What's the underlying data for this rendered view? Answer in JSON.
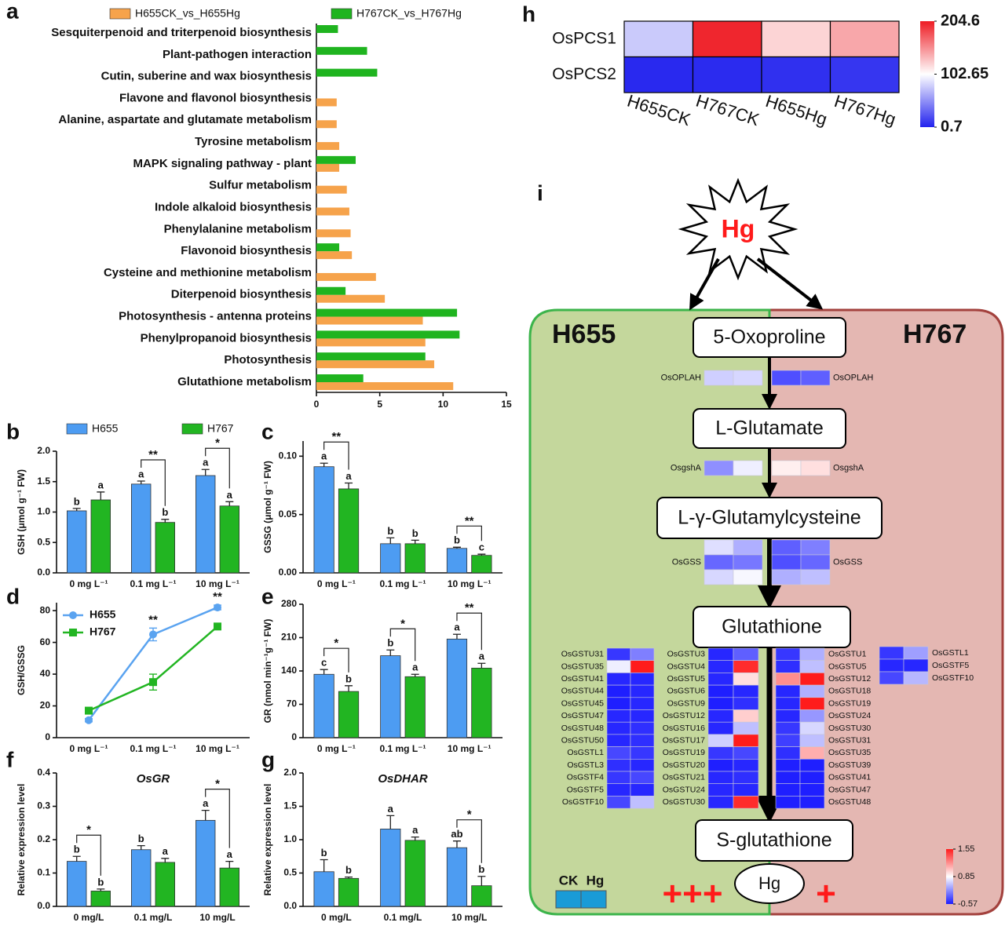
{
  "chart_data": [
    {
      "type": "bar",
      "orientation": "horizontal",
      "label": "a",
      "categories": [
        "Sesquiterpenoid and triterpenoid biosynthesis",
        "Plant-pathogen interaction",
        "Cutin, suberine and wax biosynthesis",
        "Flavone and flavonol biosynthesis",
        "Alanine, aspartate and glutamate metabolism",
        "Tyrosine metabolism",
        "MAPK signaling pathway - plant",
        "Sulfur metabolism",
        "Indole alkaloid biosynthesis",
        "Phenylalanine metabolism",
        "Flavonoid biosynthesis",
        "Cysteine and methionine metabolism",
        "Diterpenoid biosynthesis",
        "Photosynthesis - antenna proteins",
        "Phenylpropanoid biosynthesis",
        "Photosynthesis",
        "Glutathione metabolism"
      ],
      "series": [
        {
          "name": "H655CK_vs_H655Hg",
          "color": "#f6a34b",
          "values": [
            null,
            null,
            null,
            1.6,
            1.6,
            1.8,
            1.8,
            2.4,
            2.6,
            2.7,
            2.8,
            4.7,
            5.4,
            8.4,
            8.6,
            9.3,
            10.8
          ]
        },
        {
          "name": "H767CK_vs_H767Hg",
          "color": "#1fb41f",
          "values": [
            1.7,
            4.0,
            4.8,
            null,
            null,
            null,
            3.1,
            null,
            null,
            null,
            1.8,
            null,
            2.3,
            11.1,
            11.3,
            8.6,
            3.7
          ]
        }
      ],
      "xlim": [
        0,
        15
      ],
      "xticks": [
        0,
        5,
        10,
        15
      ],
      "legend": "top"
    },
    {
      "type": "heatmap",
      "label": "h",
      "rows": [
        "OsPCS1",
        "OsPCS2"
      ],
      "columns": [
        "H655CK",
        "H767CK",
        "H655Hg",
        "H767Hg"
      ],
      "values": [
        [
          78,
          200,
          122,
          142
        ],
        [
          4,
          5,
          7,
          10
        ]
      ],
      "zlim": [
        0.7,
        204.6
      ],
      "zticks": [
        204.6,
        102.65,
        0.7
      ],
      "colors": [
        "#2222ee",
        "#ffffff",
        "#ee1c24"
      ]
    },
    {
      "type": "bar",
      "label": "b",
      "ylabel": "GSH (μmol g⁻¹ FW)",
      "categories": [
        "0  mg L⁻¹",
        "0.1  mg L⁻¹",
        "10  mg L⁻¹"
      ],
      "series": [
        {
          "name": "H655",
          "color": "#4d9cf2",
          "values": [
            1.02,
            1.46,
            1.6
          ],
          "errors": [
            0.04,
            0.05,
            0.1
          ],
          "letters": [
            "b",
            "a",
            "a"
          ]
        },
        {
          "name": "H767",
          "color": "#22b522",
          "values": [
            1.2,
            0.83,
            1.1
          ],
          "errors": [
            0.13,
            0.05,
            0.07
          ],
          "letters": [
            "a",
            "b",
            "a"
          ]
        }
      ],
      "significance": [
        null,
        "**",
        "*"
      ],
      "ylim": [
        0,
        2.0
      ],
      "yticks": [
        {
          "value": 0,
          "label": "0.0"
        },
        0.5,
        {
          "value": 1,
          "label": "1.0"
        },
        1.5,
        {
          "value": 2,
          "label": "2.0"
        }
      ],
      "legend": "top"
    },
    {
      "type": "bar",
      "label": "c",
      "ylabel": "GSSG (μmol g⁻¹ FW)",
      "categories": [
        "0  mg L⁻¹",
        "0.1  mg L⁻¹",
        "10  mg L⁻¹"
      ],
      "series": [
        {
          "color": "#4d9cf2",
          "values": [
            0.091,
            0.025,
            0.021
          ],
          "errors": [
            0.003,
            0.005,
            0.001
          ],
          "letters": [
            "a",
            "b",
            "b"
          ]
        },
        {
          "color": "#22b522",
          "values": [
            0.072,
            0.025,
            0.015
          ],
          "errors": [
            0.005,
            0.003,
            0.001
          ],
          "letters": [
            "a",
            "b",
            "c"
          ]
        }
      ],
      "significance": [
        "**",
        null,
        "**"
      ],
      "ylim": [
        0,
        0.113
      ],
      "yticks": [
        {
          "value": 0,
          "label": "0.00"
        },
        0.05,
        {
          "value": 0.1,
          "label": "0.10"
        }
      ]
    },
    {
      "type": "line",
      "label": "d",
      "ylabel": "GSH/GSSG",
      "categories": [
        "0 mg L⁻¹",
        "0.1 mg L⁻¹",
        "10 mg L⁻¹"
      ],
      "series": [
        {
          "name": "H655",
          "color": "#5aa3f0",
          "marker": "circle",
          "values": [
            11,
            65,
            82
          ],
          "errors": [
            1,
            4,
            1.5
          ]
        },
        {
          "name": "H767",
          "color": "#22b522",
          "marker": "square",
          "values": [
            17,
            35,
            70
          ],
          "errors": [
            2,
            5,
            1
          ]
        }
      ],
      "significance": [
        null,
        "**",
        "**"
      ],
      "ylim": [
        0,
        85
      ],
      "yticks": [
        0,
        20,
        40,
        60,
        80
      ],
      "legend": "upper left"
    },
    {
      "type": "bar",
      "label": "e",
      "ylabel": "GR (nmol min⁻¹g⁻¹ FW)",
      "categories": [
        "0  mg L⁻¹",
        "0.1  mg L⁻¹",
        "10  mg L⁻¹"
      ],
      "series": [
        {
          "color": "#4d9cf2",
          "values": [
            133,
            172,
            207
          ],
          "errors": [
            10,
            12,
            10
          ],
          "letters": [
            "c",
            "b",
            "a"
          ]
        },
        {
          "color": "#22b522",
          "values": [
            97,
            128,
            146
          ],
          "errors": [
            12,
            5,
            10
          ],
          "letters": [
            "b",
            "a",
            "a"
          ]
        }
      ],
      "significance": [
        "*",
        "*",
        "**"
      ],
      "ylim": [
        0,
        280
      ],
      "yticks": [
        0,
        70,
        140,
        210,
        280
      ]
    },
    {
      "type": "bar",
      "label": "f",
      "title": "OsGR",
      "ylabel": "Relative expression level",
      "categories": [
        "0 mg/L",
        "0.1 mg/L",
        "10 mg/L"
      ],
      "series": [
        {
          "color": "#4d9cf2",
          "values": [
            0.135,
            0.17,
            0.258
          ],
          "errors": [
            0.015,
            0.012,
            0.03
          ],
          "letters": [
            "b",
            "b",
            "a"
          ]
        },
        {
          "color": "#22b522",
          "values": [
            0.046,
            0.132,
            0.115
          ],
          "errors": [
            0.006,
            0.012,
            0.02
          ],
          "letters": [
            "b",
            "a",
            "a"
          ]
        }
      ],
      "significance": [
        "*",
        null,
        "*"
      ],
      "ylim": [
        0,
        0.4
      ],
      "yticks": [
        {
          "value": 0,
          "label": "0.0"
        },
        0.1,
        0.2,
        0.3,
        0.4
      ]
    },
    {
      "type": "bar",
      "label": "g",
      "title": "OsDHAR",
      "ylabel": "Relative expression level",
      "categories": [
        "0 mg/L",
        "0.1 mg/L",
        "10 mg/L"
      ],
      "series": [
        {
          "color": "#4d9cf2",
          "values": [
            0.52,
            1.16,
            0.88
          ],
          "errors": [
            0.18,
            0.2,
            0.1
          ],
          "letters": [
            "b",
            "a",
            "ab"
          ]
        },
        {
          "color": "#22b522",
          "values": [
            0.42,
            0.99,
            0.31
          ],
          "errors": [
            0.02,
            0.05,
            0.14
          ],
          "letters": [
            "b",
            "a",
            "b"
          ]
        }
      ],
      "significance": [
        null,
        null,
        "*"
      ],
      "ylim": [
        0,
        2.0
      ],
      "yticks": [
        {
          "value": 0,
          "label": "0.0"
        },
        0.5,
        {
          "value": 1,
          "label": "1.0"
        },
        1.5,
        {
          "value": 2,
          "label": "2.0"
        }
      ]
    }
  ],
  "diagram": {
    "label": "i",
    "stressor": "Hg",
    "left_title": "H655",
    "right_title": "H767",
    "nodes": [
      "5-Oxoproline",
      "L-Glutamate",
      "L-γ-Glutamylcysteine",
      "Glutathione",
      "S-glutathione"
    ],
    "metal": "Hg",
    "enzymes": [
      {
        "name": "OsOPLAH",
        "left": [
          [
            0.55,
            0.6
          ]
        ],
        "right": [
          [
            -0.25,
            -0.15
          ]
        ]
      },
      {
        "name": "OsgshA",
        "left": [
          [
            0.15,
            0.75
          ]
        ],
        "right": [
          [
            0.9,
            0.95
          ]
        ]
      },
      {
        "name": "OsGSS",
        "left": [
          [
            0.65,
            0.35
          ],
          [
            -0.1,
            0.0
          ],
          [
            0.6,
            0.8
          ]
        ],
        "right": [
          [
            -0.15,
            0.05
          ],
          [
            -0.25,
            -0.1
          ],
          [
            0.35,
            0.45
          ]
        ]
      }
    ],
    "gst_blocks": [
      {
        "genes": [
          "OsGSTU31",
          "OsGSTU35",
          "OsGSTU41",
          "OsGSTU44",
          "OsGSTU45",
          "OsGSTU47",
          "OsGSTU48",
          "OsGSTU50",
          "OsGSTL1",
          "OsGSTL3",
          "OsGSTF4",
          "OsGSTF5",
          "OsGSTF10"
        ],
        "values": [
          [
            -0.4,
            0.05
          ],
          [
            0.75,
            1.55
          ],
          [
            -0.5,
            -0.5
          ],
          [
            -0.55,
            -0.5
          ],
          [
            -0.55,
            -0.5
          ],
          [
            -0.5,
            -0.5
          ],
          [
            -0.5,
            -0.45
          ],
          [
            -0.5,
            -0.45
          ],
          [
            -0.3,
            -0.4
          ],
          [
            -0.45,
            -0.5
          ],
          [
            -0.4,
            -0.3
          ],
          [
            -0.5,
            -0.5
          ],
          [
            -0.3,
            0.45
          ]
        ]
      },
      {
        "genes": [
          "OsGSTU3",
          "OsGSTU4",
          "OsGSTU5",
          "OsGSTU6",
          "OsGSTU9",
          "OsGSTU12",
          "OsGSTU16",
          "OsGSTU17",
          "OsGSTU19",
          "OsGSTU20",
          "OsGSTU21",
          "OsGSTU24",
          "OsGSTU30"
        ],
        "values": [
          [
            -0.5,
            -0.15
          ],
          [
            -0.5,
            1.5
          ],
          [
            -0.5,
            0.95
          ],
          [
            -0.55,
            -0.5
          ],
          [
            -0.55,
            -0.45
          ],
          [
            -0.5,
            1.0
          ],
          [
            -0.5,
            0.45
          ],
          [
            0.55,
            1.55
          ],
          [
            -0.4,
            -0.3
          ],
          [
            -0.55,
            -0.5
          ],
          [
            -0.5,
            -0.45
          ],
          [
            -0.5,
            -0.5
          ],
          [
            -0.5,
            1.5
          ]
        ]
      },
      {
        "genes": [
          "OsGSTU1",
          "OsGSTU5",
          "OsGSTU12",
          "OsGSTU18",
          "OsGSTU19",
          "OsGSTU24",
          "OsGSTU30",
          "OsGSTU31",
          "OsGSTU35",
          "OsGSTU39",
          "OsGSTU41",
          "OsGSTU47",
          "OsGSTU48"
        ],
        "values": [
          [
            -0.4,
            0.35
          ],
          [
            -0.45,
            0.45
          ],
          [
            1.2,
            1.55
          ],
          [
            -0.5,
            0.35
          ],
          [
            -0.5,
            1.55
          ],
          [
            -0.5,
            0.2
          ],
          [
            -0.4,
            0.6
          ],
          [
            -0.35,
            0.45
          ],
          [
            -0.45,
            1.1
          ],
          [
            -0.55,
            -0.55
          ],
          [
            -0.55,
            -0.55
          ],
          [
            -0.55,
            -0.55
          ],
          [
            -0.55,
            -0.55
          ]
        ]
      },
      {
        "genes": [
          "OsGSTL1",
          "OsGSTF5",
          "OsGSTF10"
        ],
        "values": [
          [
            -0.4,
            0.25
          ],
          [
            -0.5,
            -0.5
          ],
          [
            -0.3,
            0.4
          ]
        ]
      }
    ],
    "legend_columns": [
      "CK",
      "Hg"
    ],
    "left_level": "+++",
    "right_level": "+",
    "scale": {
      "zlim": [
        -0.57,
        1.55
      ],
      "zticks": [
        1.55,
        0.85,
        -0.57
      ],
      "colors": [
        "#1c1cff",
        "#ffffff",
        "#ff1c1c"
      ]
    }
  }
}
